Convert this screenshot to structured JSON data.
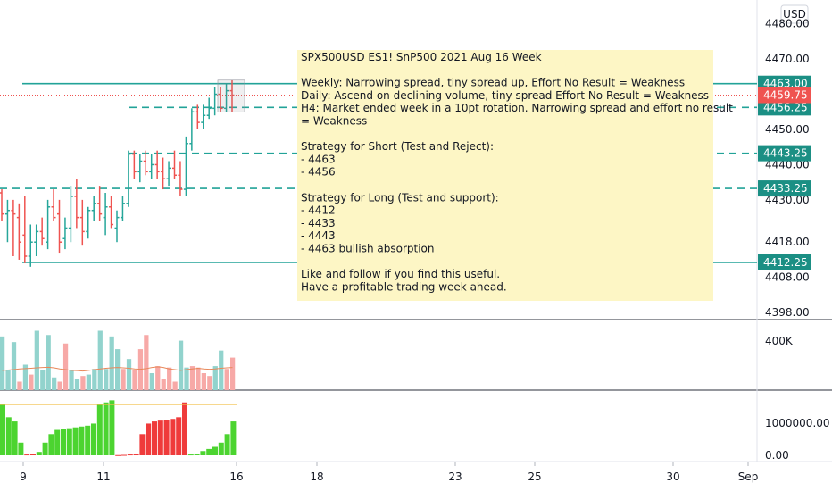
{
  "chart_data": {
    "type": "candlestick",
    "currency_label": "USD",
    "price_axis": {
      "ylim": [
        4396,
        4486
      ],
      "ticks": [
        "4480.00",
        "4470.00",
        "4460.00",
        "4450.00",
        "4440.00",
        "4430.00",
        "4418.00",
        "4408.00",
        "4398.00"
      ]
    },
    "x_axis": {
      "ticks": [
        "9",
        "11",
        "16",
        "18",
        "23",
        "25",
        "30",
        "Sep"
      ]
    },
    "levels": [
      {
        "value": 4463.0,
        "label": "4463.00",
        "style": "solid"
      },
      {
        "value": 4456.25,
        "label": "4456.25",
        "style": "dashed"
      },
      {
        "value": 4443.25,
        "label": "4443.25",
        "style": "dashed"
      },
      {
        "value": 4433.25,
        "label": "4433.25",
        "style": "dashed"
      },
      {
        "value": 4412.25,
        "label": "4412.25",
        "style": "solid"
      }
    ],
    "last_price": {
      "value": 4459.75,
      "label": "4459.75"
    },
    "volume_axis_label": "400K",
    "indicator_axis_labels": [
      "1000000.00",
      "0.00"
    ],
    "colors": {
      "up": "#26a69a",
      "down": "#ef5350",
      "level": "#22a398",
      "tag": "#1b8f84",
      "last": "#ef5350",
      "note_bg": "#fdf6c5",
      "osc_up": "#4cd430",
      "osc_down": "#ef3b3b"
    },
    "candles": [
      [
        4432,
        4433,
        4424,
        4426
      ],
      [
        4426,
        4430,
        4418,
        4427
      ],
      [
        4427,
        4430,
        4414,
        4426
      ],
      [
        4425,
        4429,
        4413,
        4418
      ],
      [
        4420,
        4431,
        4412,
        4414
      ],
      [
        4414,
        4423,
        4411,
        4418
      ],
      [
        4418,
        4423,
        4414,
        4421
      ],
      [
        4421,
        4425,
        4417,
        4419
      ],
      [
        4418,
        4430,
        4416,
        4428
      ],
      [
        4428,
        4433,
        4424,
        4425
      ],
      [
        4426,
        4430,
        4415,
        4418
      ],
      [
        4419,
        4425,
        4416,
        4422
      ],
      [
        4422,
        4434,
        4418,
        4431
      ],
      [
        4431,
        4436,
        4422,
        4425
      ],
      [
        4425,
        4430,
        4417,
        4421
      ],
      [
        4421,
        4428,
        4419,
        4427
      ],
      [
        4427,
        4431,
        4424,
        4429
      ],
      [
        4429,
        4434,
        4424,
        4426
      ],
      [
        4425,
        4432,
        4420,
        4428
      ],
      [
        4428,
        4431,
        4422,
        4423
      ],
      [
        4422,
        4427,
        4418,
        4425
      ],
      [
        4425,
        4431,
        4424,
        4429
      ],
      [
        4429,
        4444,
        4428,
        4443
      ],
      [
        4443,
        4444,
        4436,
        4438
      ],
      [
        4438,
        4443,
        4435,
        4441
      ],
      [
        4441,
        4444,
        4437,
        4438
      ],
      [
        4438,
        4443,
        4436,
        4440
      ],
      [
        4440,
        4444,
        4436,
        4438
      ],
      [
        4438,
        4442,
        4433,
        4436
      ],
      [
        4436,
        4441,
        4434,
        4439
      ],
      [
        4439,
        4444,
        4436,
        4437
      ],
      [
        4437,
        4441,
        4431,
        4433
      ],
      [
        4433,
        4448,
        4431,
        4446
      ],
      [
        4446,
        4456,
        4444,
        4455
      ],
      [
        4455,
        4457,
        4450,
        4452
      ],
      [
        4452,
        4457,
        4450,
        4454
      ],
      [
        4454,
        4459,
        4453,
        4456
      ],
      [
        4456,
        4462,
        4454,
        4460
      ],
      [
        4460,
        4462,
        4455,
        4456
      ],
      [
        4456,
        4463,
        4455,
        4461
      ],
      [
        4461,
        4464,
        4455,
        4459.75
      ]
    ],
    "volume": [
      {
        "v": 380,
        "up": true
      },
      {
        "v": 140,
        "up": true
      },
      {
        "v": 340,
        "up": true
      },
      {
        "v": 60,
        "up": false
      },
      {
        "v": 180,
        "up": true
      },
      {
        "v": 110,
        "up": false
      },
      {
        "v": 420,
        "up": true
      },
      {
        "v": 140,
        "up": true
      },
      {
        "v": 390,
        "up": true
      },
      {
        "v": 90,
        "up": true
      },
      {
        "v": 60,
        "up": false
      },
      {
        "v": 330,
        "up": false
      },
      {
        "v": 140,
        "up": true
      },
      {
        "v": 80,
        "up": true
      },
      {
        "v": 100,
        "up": false
      },
      {
        "v": 110,
        "up": true
      },
      {
        "v": 150,
        "up": true
      },
      {
        "v": 420,
        "up": true
      },
      {
        "v": 150,
        "up": true
      },
      {
        "v": 380,
        "up": true
      },
      {
        "v": 290,
        "up": true
      },
      {
        "v": 150,
        "up": false
      },
      {
        "v": 220,
        "up": true
      },
      {
        "v": 140,
        "up": false
      },
      {
        "v": 290,
        "up": false
      },
      {
        "v": 390,
        "up": false
      },
      {
        "v": 120,
        "up": true
      },
      {
        "v": 170,
        "up": false
      },
      {
        "v": 80,
        "up": false
      },
      {
        "v": 160,
        "up": false
      },
      {
        "v": 60,
        "up": false
      },
      {
        "v": 350,
        "up": true
      },
      {
        "v": 160,
        "up": true
      },
      {
        "v": 170,
        "up": false
      },
      {
        "v": 160,
        "up": false
      },
      {
        "v": 120,
        "up": false
      },
      {
        "v": 100,
        "up": false
      },
      {
        "v": 170,
        "up": true
      },
      {
        "v": 280,
        "up": true
      },
      {
        "v": 150,
        "up": false
      },
      {
        "v": 230,
        "up": false
      }
    ],
    "volume_ma": [
      140,
      142,
      145,
      150,
      152,
      155,
      158,
      160,
      162,
      158,
      150,
      145,
      140,
      138,
      135,
      140,
      145,
      150,
      155,
      158,
      160,
      158,
      155,
      150,
      148,
      152,
      160,
      165,
      160,
      150,
      145,
      140,
      145,
      150,
      155,
      150,
      148,
      150,
      155,
      158,
      160
    ],
    "volume_max": 480,
    "indicator": [
      {
        "v": 1200000,
        "up": true
      },
      {
        "v": 900000,
        "up": true
      },
      {
        "v": 800000,
        "up": true
      },
      {
        "v": 300000,
        "up": true
      },
      {
        "v": 20000,
        "up": false
      },
      {
        "v": 40000,
        "up": false
      },
      {
        "v": 80000,
        "up": true
      },
      {
        "v": 300000,
        "up": true
      },
      {
        "v": 500000,
        "up": true
      },
      {
        "v": 600000,
        "up": true
      },
      {
        "v": 620000,
        "up": true
      },
      {
        "v": 640000,
        "up": true
      },
      {
        "v": 660000,
        "up": true
      },
      {
        "v": 680000,
        "up": true
      },
      {
        "v": 700000,
        "up": true
      },
      {
        "v": 750000,
        "up": true
      },
      {
        "v": 1200000,
        "up": true
      },
      {
        "v": 1250000,
        "up": true
      },
      {
        "v": 1300000,
        "up": true
      },
      {
        "v": 5000,
        "up": false
      },
      {
        "v": 10000,
        "up": false
      },
      {
        "v": 20000,
        "up": false
      },
      {
        "v": 30000,
        "up": false
      },
      {
        "v": 500000,
        "up": false
      },
      {
        "v": 750000,
        "up": false
      },
      {
        "v": 800000,
        "up": false
      },
      {
        "v": 820000,
        "up": false
      },
      {
        "v": 840000,
        "up": false
      },
      {
        "v": 860000,
        "up": false
      },
      {
        "v": 900000,
        "up": false
      },
      {
        "v": 1250000,
        "up": false
      },
      {
        "v": 20000,
        "up": true
      },
      {
        "v": 30000,
        "up": true
      },
      {
        "v": 100000,
        "up": true
      },
      {
        "v": 150000,
        "up": true
      },
      {
        "v": 200000,
        "up": true
      },
      {
        "v": 300000,
        "up": true
      },
      {
        "v": 500000,
        "up": true
      },
      {
        "v": 800000,
        "up": true
      }
    ],
    "indicator_max": 1350000,
    "indicator_ref": 1200000
  },
  "note": {
    "lines": [
      "SPX500USD ES1! SnP500 2021 Aug 16 Week",
      "",
      "Weekly: Narrowing spread, tiny spread up, Effort No Result = Weakness",
      "Daily: Ascend on declining volume, tiny spread Effort No Result = Weakness",
      "H4: Market ended week in a 10pt rotation. Narrowing spread and effort no result",
      "= Weakness",
      "",
      "Strategy for Short (Test and Reject):",
      "- 4463",
      "- 4456",
      "",
      "Strategy for Long (Test and support):",
      "- 4412",
      "- 4433",
      "- 4443",
      "- 4463 bullish absorption",
      "",
      "Like and follow if you find this useful.",
      "Have a profitable trading week ahead."
    ]
  }
}
